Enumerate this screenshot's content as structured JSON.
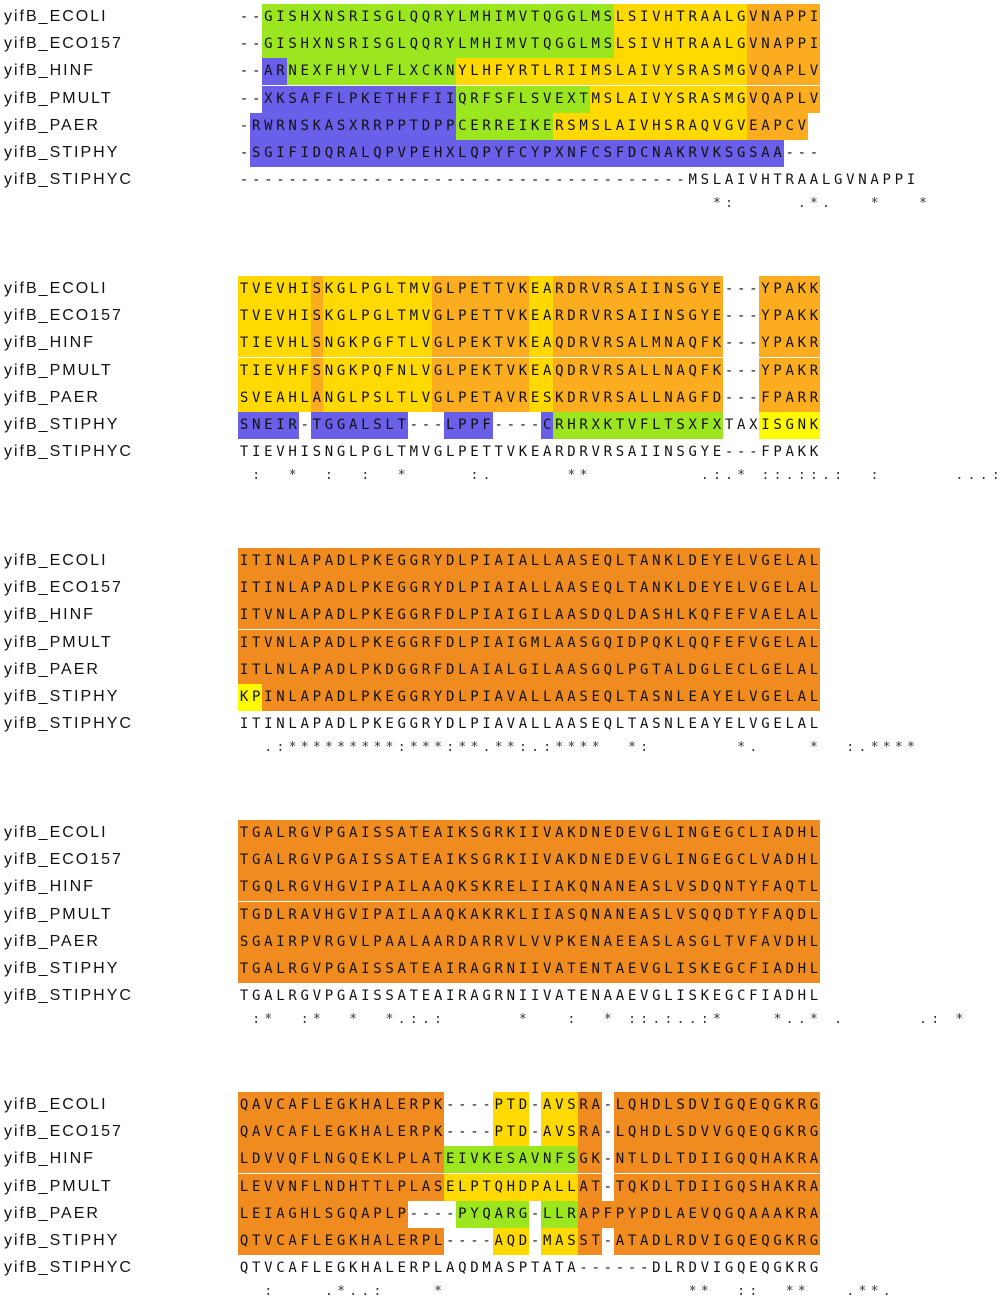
{
  "blocks": [
    {
      "rows": [
        {
          "name": "yifB_ECOLI",
          "seq": "--GISHXNSRISGLQQRYLMHIMVTQGGLMSLSIVHTRAALGVNAPPI",
          "bands": [
            [
              2,
              21,
              "b2"
            ],
            [
              21,
              31,
              "b2"
            ],
            [
              31,
              42,
              "b3"
            ],
            [
              42,
              48,
              "b4"
            ]
          ]
        },
        {
          "name": "yifB_ECO157",
          "seq": "--GISHXNSRISGLQQRYLMHIMVTQGGLMSLSIVHTRAALGVNAPPI",
          "bands": [
            [
              2,
              21,
              "b2"
            ],
            [
              21,
              31,
              "b2"
            ],
            [
              31,
              42,
              "b3"
            ],
            [
              42,
              48,
              "b4"
            ]
          ]
        },
        {
          "name": "yifB_HINF",
          "seq": "--ARNEXFHYVLFLXCKNYLHFYRTLRIIMSLAIVYSRASMGVQAPLV",
          "bands": [
            [
              2,
              4,
              "b1"
            ],
            [
              4,
              18,
              "b2"
            ],
            [
              18,
              29,
              "b3"
            ],
            [
              29,
              42,
              "b3"
            ],
            [
              42,
              48,
              "b4"
            ]
          ]
        },
        {
          "name": "yifB_PMULT",
          "seq": "--XKSAFFLPKETHFFIIQRFSFLSVEXTMSLAIVYSRASMGVQAPLV",
          "bands": [
            [
              2,
              18,
              "b1"
            ],
            [
              18,
              29,
              "b2"
            ],
            [
              29,
              42,
              "b3"
            ],
            [
              42,
              48,
              "b4"
            ]
          ]
        },
        {
          "name": "yifB_PAER",
          "seq": "-RWRNSKASXRRPPTDPPCERREIKERSMSLAIVHSRAQVGVEAPCV",
          "bands": [
            [
              1,
              18,
              "b1"
            ],
            [
              18,
              26,
              "b2"
            ],
            [
              26,
              42,
              "b3"
            ],
            [
              42,
              48,
              "b4"
            ]
          ]
        },
        {
          "name": "yifB_STIPHY",
          "seq": "-SGIFIDQRALQPVPEHXLQPYFCYPXNFCSFDCNAKRVKSGSAA---",
          "bands": [
            [
              1,
              45,
              "b1"
            ]
          ]
        },
        {
          "name": "yifB_STIPHYC",
          "seq": "-------------------------------------MSLAIVHTRAALGVNAPPI",
          "bands": []
        }
      ],
      "consensus": "                                       *:     .*.   *   *"
    },
    {
      "rows": [
        {
          "name": "yifB_ECOLI",
          "seq": "TVEVHISKGLPGLTMVGLPETTVKEARDRVRSAIINSGYE---YPAKK",
          "bands": [
            [
              0,
              6,
              "b3"
            ],
            [
              6,
              7,
              "b4"
            ],
            [
              7,
              16,
              "b3"
            ],
            [
              16,
              24,
              "b4"
            ],
            [
              24,
              26,
              "b3"
            ],
            [
              26,
              52,
              "b4"
            ],
            [
              52,
              56,
              "b3"
            ],
            [
              56,
              61,
              "b5"
            ]
          ]
        },
        {
          "name": "yifB_ECO157",
          "seq": "TVEVHISKGLPGLTMVGLPETTVKEARDRVRSAIINSGYE---YPAKK",
          "bands": [
            [
              0,
              6,
              "b3"
            ],
            [
              6,
              7,
              "b4"
            ],
            [
              7,
              16,
              "b3"
            ],
            [
              16,
              24,
              "b4"
            ],
            [
              24,
              26,
              "b3"
            ],
            [
              26,
              52,
              "b4"
            ],
            [
              52,
              56,
              "b3"
            ],
            [
              56,
              61,
              "b5"
            ]
          ]
        },
        {
          "name": "yifB_HINF",
          "seq": "TIEVHLSNGKPGFTLVGLPEKTVKEAQDRVRSALMNAQFK---YPAKR",
          "bands": [
            [
              0,
              6,
              "b3"
            ],
            [
              6,
              7,
              "b4"
            ],
            [
              7,
              16,
              "b3"
            ],
            [
              16,
              24,
              "b4"
            ],
            [
              24,
              26,
              "b3"
            ],
            [
              26,
              52,
              "b4"
            ],
            [
              52,
              56,
              "b3"
            ],
            [
              56,
              61,
              "b5"
            ]
          ]
        },
        {
          "name": "yifB_PMULT",
          "seq": "TIEVHFSNGKPQFNLVGLPEKTVKEAQDRVRSALLNAQFK---YPAKR",
          "bands": [
            [
              0,
              6,
              "b3"
            ],
            [
              6,
              7,
              "b4"
            ],
            [
              7,
              16,
              "b3"
            ],
            [
              16,
              24,
              "b4"
            ],
            [
              24,
              26,
              "b3"
            ],
            [
              26,
              52,
              "b4"
            ],
            [
              52,
              56,
              "b3"
            ],
            [
              56,
              61,
              "b5"
            ]
          ]
        },
        {
          "name": "yifB_PAER",
          "seq": "SVEAHLANGLPSLTLVGLPETAVRESKDRVRSALLNAGFD---FPARR",
          "bands": [
            [
              0,
              6,
              "b3"
            ],
            [
              6,
              7,
              "b4"
            ],
            [
              7,
              16,
              "b3"
            ],
            [
              16,
              24,
              "b4"
            ],
            [
              24,
              26,
              "b3"
            ],
            [
              26,
              52,
              "b4"
            ],
            [
              52,
              56,
              "b3"
            ],
            [
              56,
              61,
              "b5"
            ]
          ]
        },
        {
          "name": "yifB_STIPHY",
          "seq": "SNEIR-TGGALSLT---LPPF----CRHRXKTVFLTSXFXTAXISGNK",
          "bands": [
            [
              0,
              5,
              "b1"
            ],
            [
              6,
              14,
              "b1"
            ],
            [
              17,
              21,
              "b1"
            ],
            [
              25,
              26,
              "b1"
            ],
            [
              26,
              40,
              "b2"
            ],
            [
              43,
              48,
              "b7"
            ]
          ]
        },
        {
          "name": "yifB_STIPHYC",
          "seq": "TIEVHISNGLPGLTMVGLPETTVKEARDRVRSAIINSGYE---FPAKK",
          "bands": []
        }
      ],
      "consensus": " :  *  :  :  *     :.      **         .:.* ::.::.:  :      ...:"
    },
    {
      "rows": [
        {
          "name": "yifB_ECOLI",
          "seq": "ITINLAPADLPKEGGRYDLPIAIALLAASEQLTANKLDEYELVGELAL",
          "bands": [
            [
              0,
              48,
              "b5"
            ]
          ]
        },
        {
          "name": "yifB_ECO157",
          "seq": "ITINLAPADLPKEGGRYDLPIAIALLAASEQLTANKLDEYELVGELAL",
          "bands": [
            [
              0,
              48,
              "b5"
            ]
          ]
        },
        {
          "name": "yifB_HINF",
          "seq": "ITVNLAPADLPKEGGRFDLPIAIGILAASDQLDASHLKQFEFVAELAL",
          "bands": [
            [
              0,
              48,
              "b5"
            ]
          ]
        },
        {
          "name": "yifB_PMULT",
          "seq": "ITVNLAPADLPKEGGRFDLPIAIGMLAASGQIDPQKLQQFEFVGELAL",
          "bands": [
            [
              0,
              48,
              "b5"
            ]
          ]
        },
        {
          "name": "yifB_PAER",
          "seq": "ITLNLAPADLPKDGGRFDLAIALGILAASGQLPGTALDGLECLGELAL",
          "bands": [
            [
              0,
              48,
              "b5"
            ]
          ]
        },
        {
          "name": "yifB_STIPHY",
          "seq": "KPINLAPADLPKEGGRYDLPIAVALLAASEQLTASNLEAYELVGELAL",
          "bands": [
            [
              0,
              2,
              "b7"
            ],
            [
              2,
              48,
              "b5"
            ]
          ]
        },
        {
          "name": "yifB_STIPHYC",
          "seq": "ITINLAPADLPKEGGRYDLPIAVALLAASEQLTASNLEAYELVGELAL",
          "bands": []
        }
      ],
      "consensus": "  .:*********:***:**.**:.:****  *:       *.    *  :.****"
    },
    {
      "rows": [
        {
          "name": "yifB_ECOLI",
          "seq": "TGALRGVPGAISSATEAIKSGRKIIVAKDNEDEVGLINGEGCLIADHL",
          "bands": [
            [
              0,
              48,
              "b5"
            ]
          ]
        },
        {
          "name": "yifB_ECO157",
          "seq": "TGALRGVPGAISSATEAIKSGRKIIVAKDNEDEVGLINGEGCLVADHL",
          "bands": [
            [
              0,
              48,
              "b5"
            ]
          ]
        },
        {
          "name": "yifB_HINF",
          "seq": "TGQLRGVHGVIPAILAAQKSKRELIIAKQNANEASLVSDQNTYFAQTL",
          "bands": [
            [
              0,
              48,
              "b5"
            ]
          ]
        },
        {
          "name": "yifB_PMULT",
          "seq": "TGDLRAVHGVIPAILAAQKAKRKLIIASQNANEASLVSQQDTYFAQDL",
          "bands": [
            [
              0,
              48,
              "b5"
            ]
          ]
        },
        {
          "name": "yifB_PAER",
          "seq": "SGAIRPVRGVLPAALAARDARRVLVVPKENAEEASLASGLTVFAVDHL",
          "bands": [
            [
              0,
              48,
              "b5"
            ]
          ]
        },
        {
          "name": "yifB_STIPHY",
          "seq": "TGALRGVPGAISSATEAIRAGRNIIVATENTAEVGLISKEGCFIADHL",
          "bands": [
            [
              0,
              48,
              "b5"
            ]
          ]
        },
        {
          "name": "yifB_STIPHYC",
          "seq": "TGALRGVPGAISSATEAIRAGRNIIVATENAAEVGLISKEGCFIADHL",
          "bands": []
        }
      ],
      "consensus": " :*  :*  *  *.:.:      *   :  * ::.:..:*    *..* .      .: *"
    },
    {
      "rows": [
        {
          "name": "yifB_ECOLI",
          "seq": "QAVCAFLEGKHALERPK----PTD-AVSRA-LQHDLSDVIGQEQGKRG",
          "bands": [
            [
              0,
              17,
              "b5"
            ],
            [
              17,
              28,
              "b3"
            ],
            [
              28,
              48,
              "b5"
            ]
          ]
        },
        {
          "name": "yifB_ECO157",
          "seq": "QAVCAFLEGKHALERPK----PTD-AVSRA-LQHDLSDVVGQEQGKRG",
          "bands": [
            [
              0,
              17,
              "b5"
            ],
            [
              17,
              28,
              "b3"
            ],
            [
              28,
              48,
              "b5"
            ]
          ]
        },
        {
          "name": "yifB_HINF",
          "seq": "LDVVQFLNGQEKLPLATEIVKESAVNFSGK-NTLDLTDIIGQQHAKRA",
          "bands": [
            [
              0,
              17,
              "b5"
            ],
            [
              17,
              28,
              "b2"
            ],
            [
              28,
              48,
              "b5"
            ]
          ]
        },
        {
          "name": "yifB_PMULT",
          "seq": "LEVVNFLNDHTTLPLASELPTQHDPALLAT-TQKDLTDIIGQSHAKRA",
          "bands": [
            [
              0,
              17,
              "b5"
            ],
            [
              17,
              28,
              "b3"
            ],
            [
              28,
              48,
              "b5"
            ]
          ]
        },
        {
          "name": "yifB_PAER",
          "seq": "LEIAGHLSGQAPLP----PYQARG-LLRAPFPYPDLAEVQGQAAAKRA",
          "bands": [
            [
              0,
              14,
              "b5"
            ],
            [
              14,
              28,
              "b2"
            ],
            [
              28,
              48,
              "b5"
            ]
          ]
        },
        {
          "name": "yifB_STIPHY",
          "seq": "QTVCAFLEGKHALERPL----AQD-MASST-ATADLRDVIGQEQGKRG",
          "bands": [
            [
              0,
              17,
              "b5"
            ],
            [
              17,
              28,
              "b3"
            ],
            [
              28,
              48,
              "b5"
            ]
          ]
        },
        {
          "name": "yifB_STIPHYC",
          "seq": "QTVCAFLEGKHALERPLAQDMASPTATA------DLRDVIGQEQGKRG",
          "bands": []
        }
      ],
      "consensus": "  :    .*..:    *                    **  ::  **   .**."
    }
  ]
}
